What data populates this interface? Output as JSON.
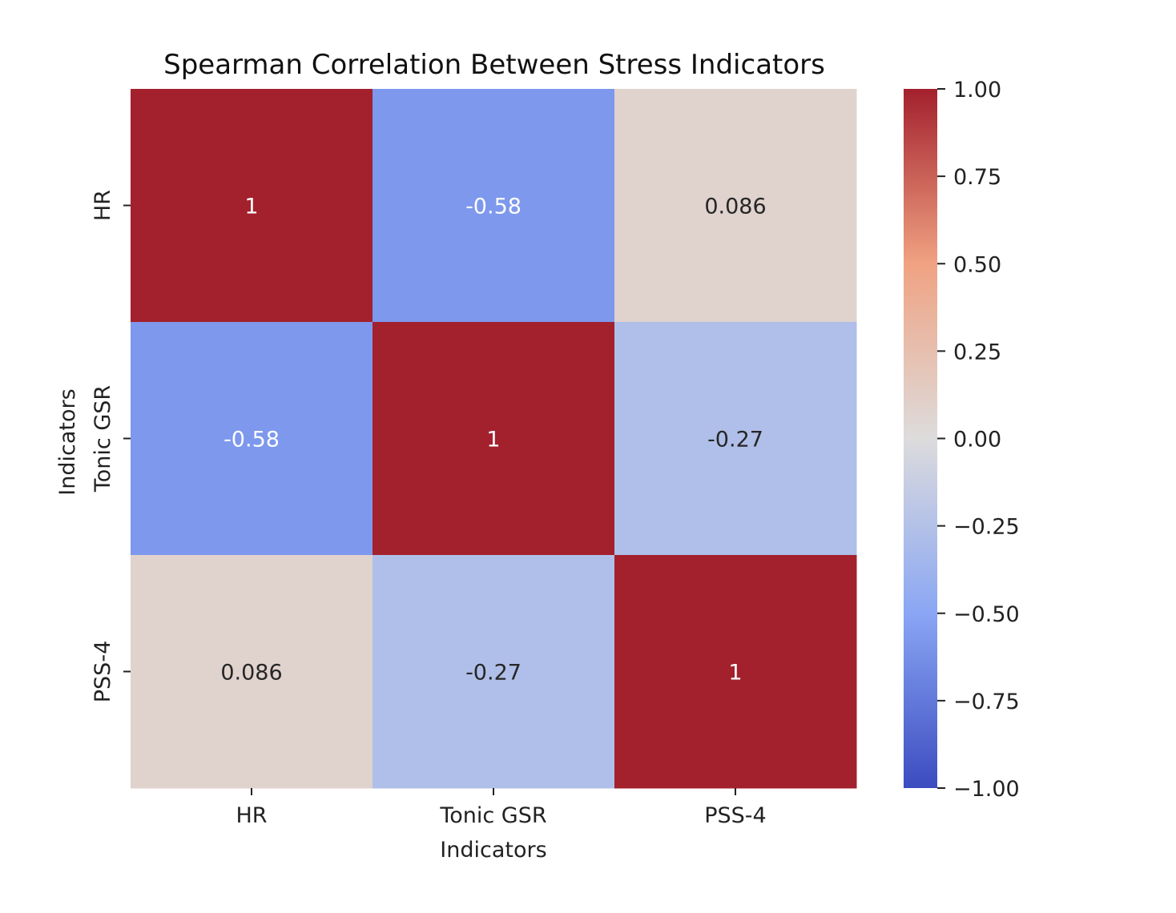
{
  "chart_data": {
    "type": "heatmap",
    "title": "Spearman Correlation Between Stress Indicators",
    "xlabel": "Indicators",
    "ylabel": "Indicators",
    "x_categories": [
      "HR",
      "Tonic GSR",
      "PSS-4"
    ],
    "y_categories": [
      "HR",
      "Tonic GSR",
      "PSS-4"
    ],
    "values": [
      [
        1,
        -0.58,
        0.086
      ],
      [
        -0.58,
        1,
        -0.27
      ],
      [
        0.086,
        -0.27,
        1
      ]
    ],
    "annotations": [
      [
        "1",
        "-0.58",
        "0.086"
      ],
      [
        "-0.58",
        "1",
        "-0.27"
      ],
      [
        "0.086",
        "-0.27",
        "1"
      ]
    ],
    "colormap": "coolwarm",
    "vmin": -1,
    "vmax": 1,
    "colorbar_ticks": [
      1.0,
      0.75,
      0.5,
      0.25,
      0.0,
      -0.25,
      -0.5,
      -0.75,
      -1.0
    ],
    "colorbar_tick_labels": [
      "1.00",
      "0.75",
      "0.50",
      "0.25",
      "0.00",
      "−0.25",
      "−0.50",
      "−0.75",
      "−1.00"
    ],
    "colors": {
      "min": "#3b4cc0",
      "low": "#8aa6f4",
      "mid": "#dddcdc",
      "high": "#f0a282",
      "max": "#a3202d"
    },
    "legend": "colorbar-right"
  }
}
